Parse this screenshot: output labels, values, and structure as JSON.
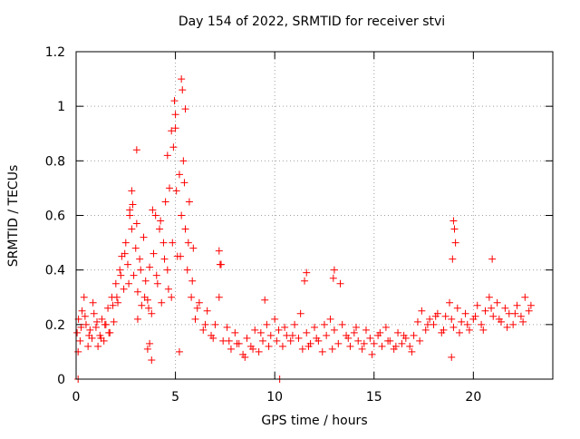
{
  "chart_data": {
    "type": "scatter",
    "title": "Day 154 of 2022, SRMTID for receiver stvi",
    "xlabel": "GPS time / hours",
    "ylabel": "SRMTID / TECUs",
    "xlim": [
      0,
      24
    ],
    "ylim": [
      0,
      1.2
    ],
    "xticks": [
      0,
      5,
      10,
      15,
      20
    ],
    "yticks": [
      0,
      0.2,
      0.4,
      0.6,
      0.8,
      1,
      1.2
    ],
    "ytick_labels": [
      "0",
      "0.2",
      "0.4",
      "0.6",
      "0.8",
      "1",
      "1.2"
    ],
    "grid": true,
    "marker": "+",
    "marker_color": "#ff0000",
    "series": [
      {
        "name": "SRMTID",
        "x": [
          0.05,
          0.12,
          0.2,
          0.3,
          0.4,
          0.5,
          0.6,
          0.7,
          0.8,
          0.9,
          1.0,
          1.1,
          1.2,
          1.3,
          1.4,
          1.5,
          1.6,
          1.7,
          1.8,
          1.9,
          2.0,
          2.1,
          2.2,
          2.3,
          2.4,
          2.5,
          2.6,
          2.7,
          2.8,
          2.9,
          3.0,
          3.1,
          3.2,
          3.3,
          3.4,
          3.5,
          3.6,
          3.7,
          3.8,
          3.9,
          4.0,
          4.1,
          4.2,
          4.3,
          4.4,
          4.5,
          4.6,
          4.7,
          4.8,
          4.9,
          5.0,
          5.1,
          5.2,
          5.3,
          5.4,
          5.5,
          5.6,
          5.7,
          5.8,
          5.9,
          6.0,
          6.2,
          6.4,
          6.6,
          6.8,
          7.0,
          7.2,
          7.4,
          7.6,
          7.8,
          8.0,
          8.2,
          8.4,
          8.6,
          8.8,
          9.0,
          9.2,
          9.4,
          9.6,
          9.8,
          10.0,
          10.2,
          10.4,
          10.6,
          10.8,
          11.0,
          11.2,
          11.4,
          11.6,
          11.8,
          12.0,
          12.2,
          12.4,
          12.6,
          12.8,
          13.0,
          13.2,
          13.4,
          13.6,
          13.8,
          14.0,
          14.2,
          14.4,
          14.6,
          14.8,
          15.0,
          15.2,
          15.4,
          15.6,
          15.8,
          16.0,
          16.2,
          16.4,
          16.6,
          16.8,
          17.0,
          17.2,
          17.4,
          17.6,
          17.8,
          18.0,
          18.2,
          18.4,
          18.6,
          18.8,
          19.0,
          19.2,
          19.4,
          19.6,
          19.8,
          20.0,
          20.2,
          20.4,
          20.6,
          20.8,
          21.0,
          21.2,
          21.4,
          21.6,
          21.8,
          22.0,
          22.2,
          22.4,
          22.6,
          22.8,
          0.1,
          0.25,
          0.45,
          0.65,
          0.85,
          1.05,
          1.25,
          1.45,
          1.65,
          1.85,
          2.05,
          2.25,
          2.45,
          2.65,
          2.85,
          3.05,
          3.25,
          3.45,
          3.65,
          3.85,
          4.05,
          4.25,
          4.45,
          4.65,
          4.85,
          5.05,
          5.25,
          5.45,
          5.65,
          5.85,
          6.1,
          6.5,
          6.9,
          7.3,
          7.7,
          8.1,
          8.5,
          8.9,
          9.3,
          9.7,
          10.1,
          10.5,
          10.9,
          11.3,
          11.7,
          12.1,
          12.5,
          12.9,
          13.3,
          13.7,
          14.1,
          14.5,
          14.9,
          15.3,
          15.7,
          16.1,
          16.5,
          16.9,
          17.3,
          17.7,
          18.1,
          18.5,
          18.9,
          19.3,
          19.7,
          20.1,
          20.5,
          20.9,
          21.3,
          21.7,
          22.1,
          22.5,
          22.9,
          2.7,
          2.8,
          3.05,
          4.6,
          4.8,
          4.95,
          5.0,
          5.3,
          5.35,
          5.5,
          3.1,
          3.7,
          3.8,
          7.2,
          7.25,
          19.0,
          19.05,
          19.1,
          18.95,
          20.95,
          11.5,
          11.6,
          12.95,
          13.0,
          9.5,
          0.1,
          10.25,
          18.9,
          3.6,
          5.2
        ],
        "y": [
          0.17,
          0.22,
          0.14,
          0.25,
          0.3,
          0.2,
          0.12,
          0.18,
          0.15,
          0.24,
          0.19,
          0.12,
          0.16,
          0.22,
          0.14,
          0.2,
          0.26,
          0.17,
          0.3,
          0.21,
          0.35,
          0.28,
          0.4,
          0.45,
          0.33,
          0.5,
          0.42,
          0.6,
          0.55,
          0.38,
          0.48,
          0.32,
          0.44,
          0.27,
          0.52,
          0.36,
          0.29,
          0.41,
          0.24,
          0.46,
          0.6,
          0.35,
          0.55,
          0.28,
          0.5,
          0.65,
          0.4,
          0.7,
          0.3,
          0.85,
          0.92,
          0.45,
          0.75,
          0.6,
          0.8,
          0.55,
          0.4,
          0.65,
          0.3,
          0.48,
          0.22,
          0.28,
          0.18,
          0.25,
          0.16,
          0.2,
          0.3,
          0.14,
          0.19,
          0.11,
          0.17,
          0.13,
          0.09,
          0.15,
          0.12,
          0.18,
          0.1,
          0.14,
          0.2,
          0.16,
          0.22,
          0.18,
          0.12,
          0.16,
          0.14,
          0.2,
          0.15,
          0.11,
          0.17,
          0.13,
          0.19,
          0.14,
          0.1,
          0.16,
          0.22,
          0.18,
          0.13,
          0.2,
          0.16,
          0.12,
          0.17,
          0.14,
          0.11,
          0.18,
          0.15,
          0.13,
          0.16,
          0.12,
          0.19,
          0.14,
          0.11,
          0.17,
          0.13,
          0.15,
          0.12,
          0.16,
          0.21,
          0.25,
          0.18,
          0.22,
          0.2,
          0.24,
          0.17,
          0.23,
          0.28,
          0.19,
          0.26,
          0.21,
          0.24,
          0.18,
          0.22,
          0.27,
          0.2,
          0.25,
          0.3,
          0.23,
          0.28,
          0.21,
          0.26,
          0.24,
          0.2,
          0.27,
          0.23,
          0.3,
          0.25,
          0.1,
          0.19,
          0.23,
          0.16,
          0.28,
          0.21,
          0.15,
          0.2,
          0.17,
          0.27,
          0.3,
          0.38,
          0.46,
          0.35,
          0.64,
          0.57,
          0.4,
          0.3,
          0.26,
          0.62,
          0.38,
          0.58,
          0.44,
          0.33,
          0.5,
          0.69,
          0.45,
          0.72,
          0.5,
          0.36,
          0.26,
          0.2,
          0.15,
          0.42,
          0.14,
          0.13,
          0.08,
          0.11,
          0.17,
          0.12,
          0.14,
          0.19,
          0.16,
          0.24,
          0.12,
          0.15,
          0.2,
          0.11,
          0.35,
          0.15,
          0.19,
          0.13,
          0.09,
          0.17,
          0.14,
          0.12,
          0.16,
          0.1,
          0.14,
          0.2,
          0.23,
          0.18,
          0.22,
          0.17,
          0.2,
          0.23,
          0.18,
          0.26,
          0.22,
          0.19,
          0.24,
          0.21,
          0.27,
          0.62,
          0.69,
          0.84,
          0.82,
          0.91,
          1.02,
          0.97,
          1.1,
          1.06,
          0.99,
          0.22,
          0.13,
          0.07,
          0.47,
          0.42,
          0.58,
          0.55,
          0.5,
          0.44,
          0.44,
          0.36,
          0.39,
          0.37,
          0.4,
          0.29,
          0.0,
          0.0,
          0.08,
          0.11,
          0.1
        ]
      }
    ]
  }
}
